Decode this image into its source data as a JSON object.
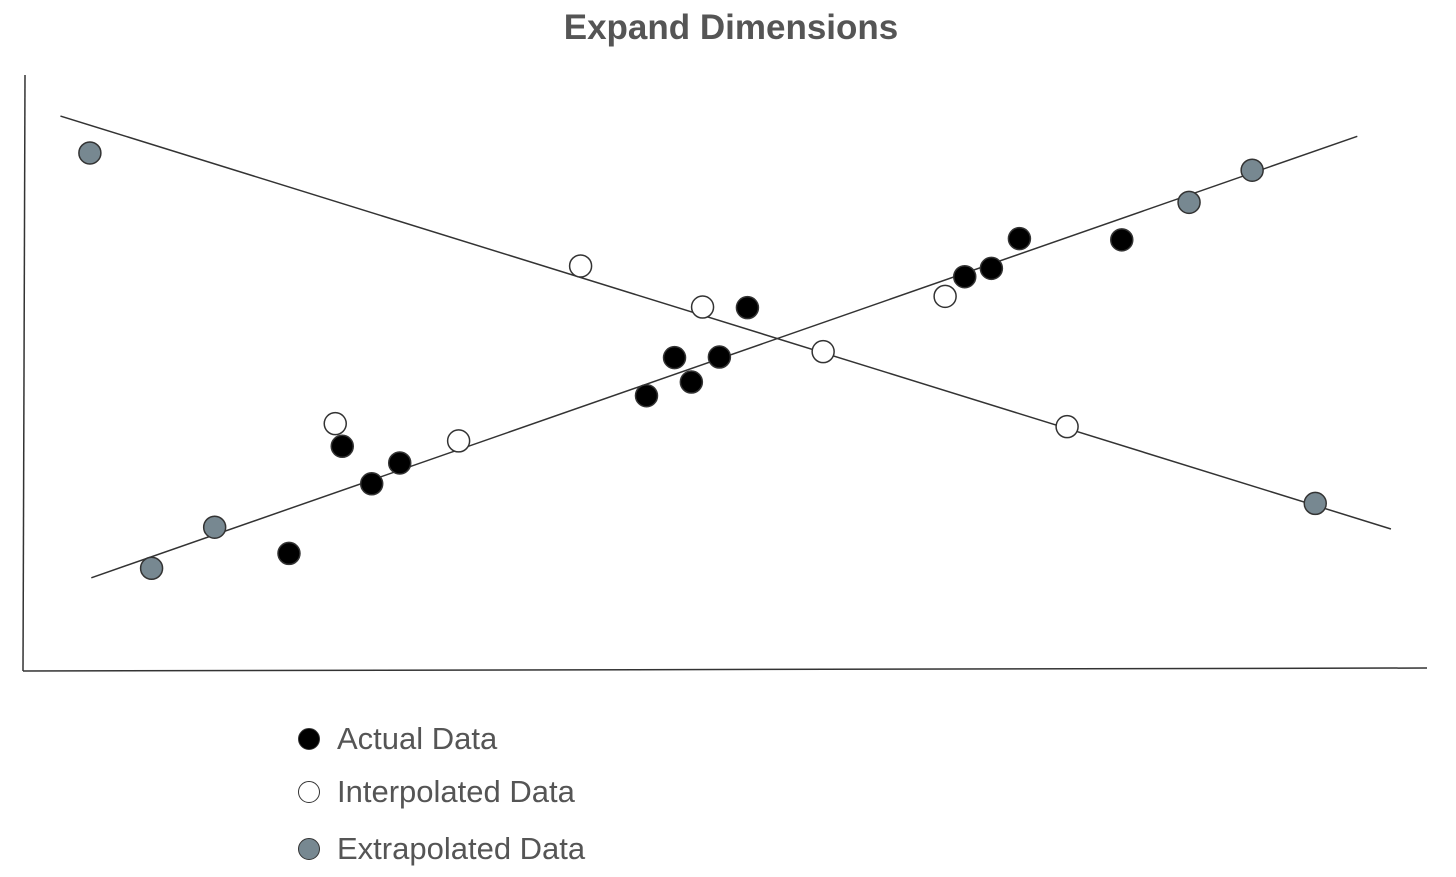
{
  "chart_data": {
    "type": "scatter",
    "title": "Expand Dimensions",
    "xlabel": "",
    "ylabel": "",
    "xlim": [
      0,
      100
    ],
    "ylim": [
      0,
      100
    ],
    "grid": false,
    "legend_position": "bottom-left",
    "series": [
      {
        "name": "Actual Data",
        "color": "#000000",
        "points": [
          [
            18.9,
            19.6
          ],
          [
            22.7,
            37.6
          ],
          [
            24.8,
            31.3
          ],
          [
            26.8,
            34.8
          ],
          [
            44.4,
            46.1
          ],
          [
            46.4,
            52.5
          ],
          [
            47.6,
            48.4
          ],
          [
            49.6,
            52.6
          ],
          [
            51.6,
            60.9
          ],
          [
            67.1,
            66.1
          ],
          [
            69.0,
            67.5
          ],
          [
            71.0,
            72.5
          ],
          [
            78.3,
            72.3
          ]
        ]
      },
      {
        "name": "Interpolated Data",
        "color": "#ffffff",
        "points": [
          [
            22.2,
            41.4
          ],
          [
            31.0,
            38.5
          ],
          [
            39.7,
            67.9
          ],
          [
            48.4,
            61.0
          ],
          [
            57.0,
            53.5
          ],
          [
            65.7,
            62.8
          ],
          [
            74.4,
            40.9
          ]
        ]
      },
      {
        "name": "Extrapolated Data",
        "color": "#778891",
        "points": [
          [
            4.7,
            86.9
          ],
          [
            9.1,
            17.1
          ],
          [
            13.6,
            24.0
          ],
          [
            83.1,
            78.6
          ],
          [
            87.6,
            84.0
          ],
          [
            92.1,
            28.0
          ]
        ]
      }
    ],
    "trend_lines": [
      {
        "from": [
          2.6,
          93.1
        ],
        "to": [
          97.5,
          23.7
        ]
      },
      {
        "from": [
          4.8,
          15.5
        ],
        "to": [
          95.1,
          89.7
        ]
      }
    ]
  },
  "legend": {
    "items": [
      {
        "label": "Actual Data",
        "color": "#000000"
      },
      {
        "label": "Interpolated Data",
        "color": "#ffffff"
      },
      {
        "label": "Extrapolated Data",
        "color": "#778891"
      }
    ]
  }
}
